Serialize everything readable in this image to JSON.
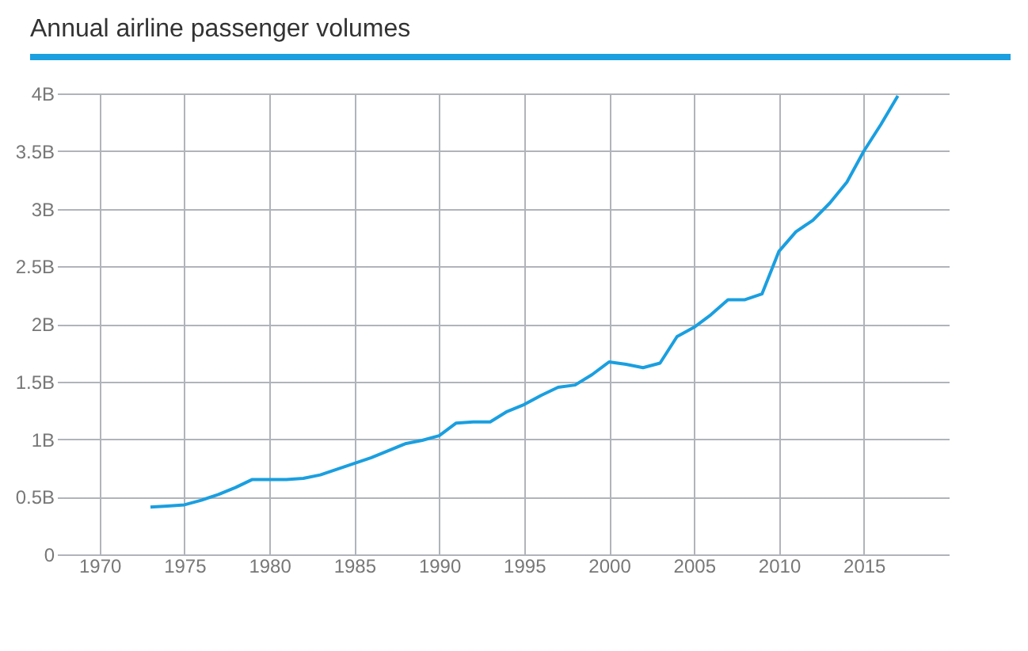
{
  "chart_data": {
    "type": "line",
    "title": "Annual airline passenger volumes",
    "x": [
      1973,
      1974,
      1975,
      1976,
      1977,
      1978,
      1979,
      1980,
      1981,
      1982,
      1983,
      1984,
      1985,
      1986,
      1987,
      1988,
      1989,
      1990,
      1991,
      1992,
      1993,
      1994,
      1995,
      1996,
      1997,
      1998,
      1999,
      2000,
      2001,
      2002,
      2003,
      2004,
      2005,
      2006,
      2007,
      2008,
      2009,
      2010,
      2011,
      2012,
      2013,
      2014,
      2015,
      2016,
      2017
    ],
    "series": [
      {
        "color": "#1a9fe0",
        "values": [
          0.41,
          0.42,
          0.43,
          0.47,
          0.52,
          0.58,
          0.65,
          0.65,
          0.65,
          0.66,
          0.69,
          0.74,
          0.79,
          0.84,
          0.9,
          0.96,
          0.99,
          1.03,
          1.14,
          1.15,
          1.15,
          1.24,
          1.3,
          1.38,
          1.45,
          1.47,
          1.56,
          1.67,
          1.65,
          1.62,
          1.66,
          1.89,
          1.97,
          2.08,
          2.21,
          2.21,
          2.26,
          2.63,
          2.8,
          2.9,
          3.05,
          3.23,
          3.5,
          3.73,
          3.98
        ]
      }
    ],
    "xlim": [
      1967.5,
      2020
    ],
    "xticks": [
      1970,
      1975,
      1980,
      1985,
      1990,
      1995,
      2000,
      2005,
      2010,
      2015
    ],
    "ylim": [
      0,
      4
    ],
    "yticks": [
      0,
      {
        "value": 0.5,
        "label": "0.5B"
      },
      {
        "value": 1,
        "label": "1B"
      },
      {
        "value": 1.5,
        "label": "1.5B"
      },
      {
        "value": 2,
        "label": "2B"
      },
      {
        "value": 2.5,
        "label": "2.5B"
      },
      {
        "value": 3,
        "label": "3B"
      },
      {
        "value": 3.5,
        "label": "3.5B"
      },
      {
        "value": 4,
        "label": "4B"
      }
    ],
    "grid": true,
    "legend": false,
    "marker": "none",
    "line_style": "solid"
  }
}
